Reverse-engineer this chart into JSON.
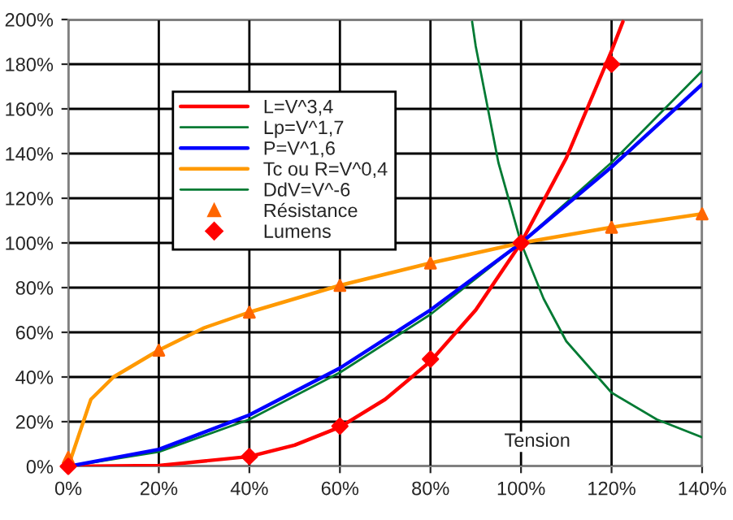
{
  "chart_data": {
    "type": "line",
    "xlabel": "Tension",
    "xlim": [
      0,
      140
    ],
    "ylim": [
      0,
      200
    ],
    "xticks": [
      {
        "value": 0,
        "label": "0%"
      },
      {
        "value": 20,
        "label": "20%"
      },
      {
        "value": 40,
        "label": "40%"
      },
      {
        "value": 60,
        "label": "60%"
      },
      {
        "value": 80,
        "label": "80%"
      },
      {
        "value": 100,
        "label": "100%"
      },
      {
        "value": 120,
        "label": "120%"
      },
      {
        "value": 140,
        "label": "140%"
      }
    ],
    "yticks": [
      {
        "value": 0,
        "label": "0%"
      },
      {
        "value": 20,
        "label": "20%"
      },
      {
        "value": 40,
        "label": "40%"
      },
      {
        "value": 60,
        "label": "60%"
      },
      {
        "value": 80,
        "label": "80%"
      },
      {
        "value": 100,
        "label": "100%"
      },
      {
        "value": 120,
        "label": "120%"
      },
      {
        "value": 140,
        "label": "140%"
      },
      {
        "value": 160,
        "label": "160%"
      },
      {
        "value": 180,
        "label": "180%"
      },
      {
        "value": 200,
        "label": "200%"
      }
    ],
    "grid": true,
    "legend": "top left",
    "series": [
      {
        "name": "L=V^3,4",
        "color": "#ff0000",
        "x": [
          0,
          20,
          40,
          50,
          60,
          70,
          80,
          90,
          100,
          110,
          120,
          122.5
        ],
        "values": [
          0,
          0.4,
          4.4,
          9.5,
          17.6,
          30,
          47,
          70,
          100,
          138,
          186,
          199
        ]
      },
      {
        "name": "Lp=V^1,7",
        "color": "#007a33",
        "x": [
          0,
          20,
          40,
          60,
          80,
          100,
          120,
          140
        ],
        "values": [
          0,
          6.5,
          21,
          42,
          68,
          100,
          136,
          177
        ]
      },
      {
        "name": "P=V^1,6",
        "color": "#0000ff",
        "x": [
          0,
          20,
          40,
          60,
          80,
          100,
          120,
          140
        ],
        "values": [
          0,
          7.6,
          23,
          44,
          70,
          100,
          134,
          171
        ]
      },
      {
        "name": "Tc ou R=V^0,4",
        "color": "#ff9900",
        "x": [
          0,
          5,
          10,
          20,
          30,
          40,
          60,
          80,
          100,
          120,
          140
        ],
        "values": [
          0,
          30,
          40,
          52,
          62,
          69,
          81,
          91,
          100,
          107,
          113
        ]
      },
      {
        "name": "DdV=V^-6",
        "color": "#007a33",
        "x": [
          89.2,
          90,
          95,
          100,
          105,
          110,
          120,
          130,
          140
        ],
        "values": [
          199,
          188,
          136,
          100,
          75,
          56,
          33,
          21,
          13
        ]
      },
      {
        "name": "Résistance",
        "type": "scatter",
        "marker": "triangle",
        "color": "#ff6600",
        "x": [
          0,
          20,
          40,
          60,
          80,
          100,
          120,
          140
        ],
        "values": [
          4,
          52,
          69,
          81,
          91,
          null,
          107,
          113
        ]
      },
      {
        "name": "Lumens",
        "type": "scatter",
        "marker": "diamond",
        "color": "#ff0000",
        "x": [
          0,
          40,
          60,
          80,
          100,
          120
        ],
        "values": [
          0,
          4.4,
          18,
          48,
          100,
          180
        ]
      }
    ]
  }
}
